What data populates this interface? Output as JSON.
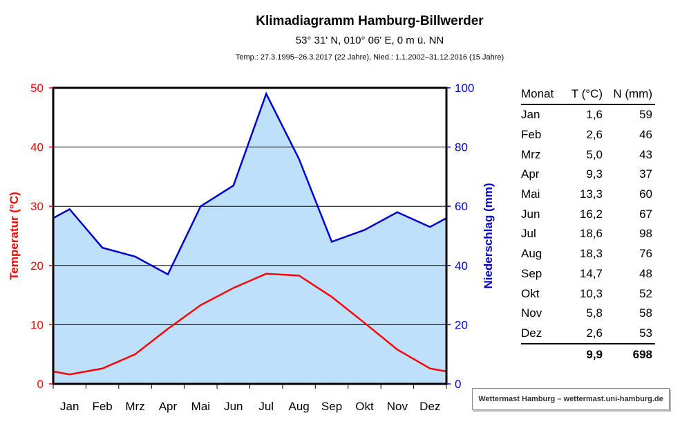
{
  "header": {
    "title": "Klimadiagramm Hamburg-Billwerder",
    "coordinates": "53° 31' N, 010° 06' E, 0 m ü. NN",
    "period": "Temp.: 27.3.1995–26.3.2017 (22 Jahre), Nied.: 1.1.2002–31.12.2016 (15 Jahre)"
  },
  "chart_data": {
    "type": "line",
    "categories": [
      "Jan",
      "Feb",
      "Mrz",
      "Apr",
      "Mai",
      "Jun",
      "Jul",
      "Aug",
      "Sep",
      "Okt",
      "Nov",
      "Dez"
    ],
    "ylabel_left": "Temperatur (°C)",
    "ylabel_right": "Niederschlag (mm)",
    "ylim_left": [
      0,
      50
    ],
    "ylim_right": [
      0,
      100
    ],
    "yticks_left": [
      "0",
      "10",
      "20",
      "30",
      "40",
      "50"
    ],
    "yticks_right": [
      "0",
      "20",
      "40",
      "60",
      "80",
      "100"
    ],
    "grid": true,
    "series": [
      {
        "axis": "left",
        "color": "#ff0000",
        "values": [
          1.6,
          2.6,
          5.0,
          9.3,
          13.3,
          16.2,
          18.6,
          18.3,
          14.7,
          10.3,
          5.8,
          2.6
        ]
      },
      {
        "axis": "right",
        "color": "#0000cc",
        "fill": "#bfe0fb",
        "values": [
          59,
          46,
          43,
          37,
          60,
          67,
          98,
          76,
          48,
          52,
          58,
          53
        ]
      }
    ]
  },
  "table": {
    "headers": [
      "Monat",
      "T (°C)",
      "N (mm)"
    ],
    "rows": [
      [
        "Jan",
        "1,6",
        "59"
      ],
      [
        "Feb",
        "2,6",
        "46"
      ],
      [
        "Mrz",
        "5,0",
        "43"
      ],
      [
        "Apr",
        "9,3",
        "37"
      ],
      [
        "Mai",
        "13,3",
        "60"
      ],
      [
        "Jun",
        "16,2",
        "67"
      ],
      [
        "Jul",
        "18,6",
        "98"
      ],
      [
        "Aug",
        "18,3",
        "76"
      ],
      [
        "Sep",
        "14,7",
        "48"
      ],
      [
        "Okt",
        "10,3",
        "52"
      ],
      [
        "Nov",
        "5,8",
        "58"
      ],
      [
        "Dez",
        "2,6",
        "53"
      ]
    ],
    "totals": [
      "",
      "9,9",
      "698"
    ]
  },
  "credit": "Wettermast Hamburg – wettermast.uni-hamburg.de",
  "colors": {
    "temperature": "#ff0000",
    "precipitation": "#0000cc",
    "fill": "#bfe0fb"
  }
}
